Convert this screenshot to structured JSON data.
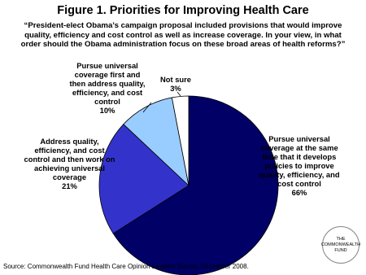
{
  "chart_data": {
    "type": "pie",
    "title": "Figure 1. Priorities for Improving Health Care",
    "subtitle": "“President-elect Obama’s campaign proposal included provisions that would improve quality, efficiency and cost control as well as increase coverage. In your view, in what order should the Obama administration focus on these broad areas of health reforms?”",
    "categories": [
      "Pursue universal coverage at the same time that it develops policies to improve quality, efficiency, and cost control",
      "Address quality, efficiency, and cost control and then work on achieving universal coverage",
      "Pursue universal coverage first and then address quality, efficiency, and cost control",
      "Not sure"
    ],
    "values": [
      66,
      21,
      10,
      3
    ],
    "value_labels": [
      "66%",
      "21%",
      "10%",
      "3%"
    ],
    "colors": [
      "#000066",
      "#3333cc",
      "#99ccff",
      "#ffffff"
    ],
    "source": "Source: Commonwealth Fund Health Care Opinion Leaders Survey, December 2008.",
    "logo": "THE COMMONWEALTH FUND"
  }
}
